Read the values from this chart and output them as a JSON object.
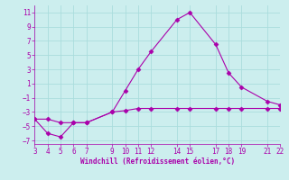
{
  "line1_x": [
    3,
    4,
    5,
    6,
    7,
    9,
    10,
    11,
    12,
    14,
    15,
    17,
    18,
    19,
    21,
    22
  ],
  "line1_y": [
    -4,
    -6,
    -6.5,
    -4.5,
    -4.5,
    -3,
    0,
    3,
    5.5,
    10,
    11,
    6.5,
    2.5,
    0.5,
    -1.5,
    -2
  ],
  "line2_x": [
    3,
    4,
    5,
    6,
    7,
    9,
    10,
    11,
    12,
    14,
    15,
    17,
    18,
    19,
    21,
    22
  ],
  "line2_y": [
    -4,
    -4,
    -4.5,
    -4.5,
    -4.5,
    -3,
    -2.8,
    -2.5,
    -2.5,
    -2.5,
    -2.5,
    -2.5,
    -2.5,
    -2.5,
    -2.5,
    -2.5
  ],
  "line_color": "#aa00aa",
  "bg_color": "#cceeee",
  "grid_color": "#aadddd",
  "xlim": [
    3,
    22
  ],
  "ylim": [
    -7.5,
    12
  ],
  "yticks": [
    -7,
    -5,
    -3,
    -1,
    1,
    3,
    5,
    7,
    9,
    11
  ],
  "xticks": [
    3,
    4,
    5,
    6,
    7,
    9,
    10,
    11,
    12,
    14,
    15,
    17,
    18,
    19,
    21,
    22
  ],
  "xlabel": "Windchill (Refroidissement éolien,°C)",
  "xlabel_color": "#aa00aa",
  "marker": "D",
  "marker_size": 2.5,
  "linewidth": 0.8,
  "tick_fontsize": 5.5,
  "xlabel_fontsize": 5.5
}
